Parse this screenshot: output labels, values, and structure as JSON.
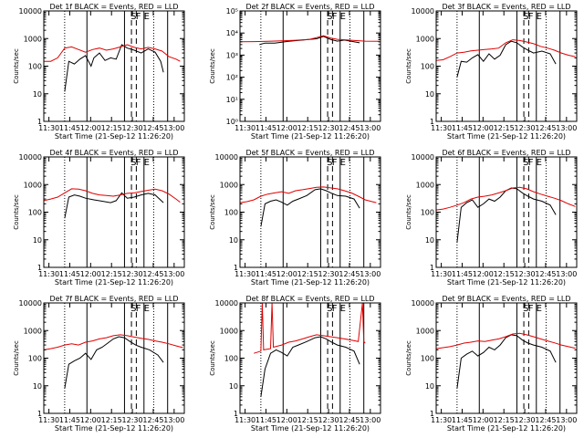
{
  "x_tick_labels": [
    "11:30",
    "11:45",
    "12:00",
    "12:15",
    "12:30",
    "12:45",
    "13:00"
  ],
  "xlabel": "Start Time (21-Sep-12 11:26:20)",
  "ylabel": "Counts/sec",
  "colors": {
    "events": "#000000",
    "lld": "#e00000"
  },
  "chart_data": [
    {
      "type": "line",
      "title": "Det 1f BLACK = Events, RED = LLD",
      "y_scale": "log",
      "ylim": [
        1,
        10000
      ],
      "y_tick_labels": [
        "1",
        "10",
        "100",
        "1000",
        "10000"
      ],
      "xlim_minutes": [
        0,
        101
      ],
      "marker_labels": [
        "S",
        "F",
        "E"
      ],
      "series": [
        {
          "name": "BLACK = Events",
          "x": [
            15,
            18,
            22,
            26,
            30,
            34,
            36,
            40,
            44,
            48,
            52,
            56,
            60,
            65,
            70,
            75,
            80,
            84,
            86
          ],
          "values": [
            12,
            150,
            120,
            180,
            240,
            100,
            200,
            300,
            160,
            200,
            180,
            600,
            450,
            380,
            300,
            420,
            320,
            150,
            60
          ]
        },
        {
          "name": "RED = LLD",
          "x": [
            0,
            5,
            10,
            15,
            20,
            25,
            30,
            35,
            40,
            45,
            50,
            55,
            60,
            65,
            70,
            75,
            80,
            85,
            90,
            95,
            98
          ],
          "values": [
            150,
            150,
            200,
            450,
            500,
            400,
            320,
            400,
            450,
            380,
            420,
            500,
            600,
            480,
            420,
            480,
            420,
            350,
            220,
            180,
            150
          ]
        }
      ]
    },
    {
      "type": "line",
      "title": "Det 2f BLACK = Events, RED = LLD",
      "y_scale": "log",
      "ylim": [
        1,
        100000
      ],
      "y_tick_labels": [
        "10⁰",
        "10¹",
        "10²",
        "10³",
        "10⁴",
        "10⁵"
      ],
      "xlim_minutes": [
        0,
        101
      ],
      "marker_labels": [
        "S",
        "F",
        "E"
      ],
      "series": [
        {
          "name": "BLACK = Events",
          "x": [
            14,
            18,
            25,
            35,
            45,
            55,
            60,
            65,
            70,
            75,
            80,
            86
          ],
          "values": [
            3000,
            3500,
            3500,
            4200,
            4800,
            5500,
            7000,
            5200,
            4300,
            4800,
            4200,
            3600
          ]
        },
        {
          "name": "RED = LLD",
          "x": [
            0,
            10,
            20,
            30,
            40,
            50,
            55,
            60,
            65,
            70,
            80,
            90,
            100
          ],
          "values": [
            4000,
            4100,
            4200,
            4400,
            4700,
            5200,
            6200,
            7500,
            6000,
            5200,
            4700,
            4300,
            4200
          ]
        }
      ]
    },
    {
      "type": "line",
      "title": "Det 3f BLACK = Events, RED = LLD",
      "y_scale": "log",
      "ylim": [
        1,
        10000
      ],
      "y_tick_labels": [
        "1",
        "10",
        "100",
        "1000",
        "10000"
      ],
      "xlim_minutes": [
        0,
        101
      ],
      "marker_labels": [
        "S",
        "F",
        "E"
      ],
      "series": [
        {
          "name": "BLACK = Events",
          "x": [
            15,
            18,
            22,
            26,
            30,
            34,
            38,
            42,
            46,
            50,
            54,
            58,
            62,
            66,
            70,
            76,
            82,
            86
          ],
          "values": [
            40,
            150,
            140,
            200,
            260,
            150,
            280,
            180,
            250,
            600,
            800,
            700,
            500,
            380,
            300,
            350,
            280,
            120
          ]
        },
        {
          "name": "RED = LLD",
          "x": [
            0,
            5,
            10,
            15,
            20,
            25,
            30,
            35,
            40,
            45,
            50,
            55,
            60,
            65,
            70,
            75,
            80,
            85,
            90,
            95,
            100
          ],
          "values": [
            160,
            170,
            220,
            300,
            320,
            360,
            380,
            400,
            420,
            450,
            700,
            900,
            850,
            750,
            650,
            520,
            450,
            380,
            300,
            250,
            220
          ]
        }
      ]
    },
    {
      "type": "line",
      "title": "Det 4f BLACK = Events, RED = LLD",
      "y_scale": "log",
      "ylim": [
        1,
        10000
      ],
      "y_tick_labels": [
        "1",
        "10",
        "100",
        "1000",
        "10000"
      ],
      "xlim_minutes": [
        0,
        101
      ],
      "marker_labels": [
        "S",
        "F",
        "E"
      ],
      "series": [
        {
          "name": "BLACK = Events",
          "x": [
            15,
            18,
            22,
            26,
            30,
            36,
            42,
            48,
            52,
            56,
            60,
            65,
            70,
            75,
            80,
            86
          ],
          "values": [
            60,
            350,
            420,
            380,
            320,
            280,
            250,
            220,
            260,
            500,
            320,
            350,
            420,
            480,
            420,
            220
          ]
        },
        {
          "name": "RED = LLD",
          "x": [
            0,
            5,
            10,
            15,
            20,
            25,
            30,
            35,
            40,
            45,
            50,
            55,
            60,
            65,
            70,
            75,
            80,
            85,
            90,
            95,
            98
          ],
          "values": [
            260,
            300,
            350,
            500,
            700,
            680,
            600,
            480,
            420,
            400,
            380,
            420,
            480,
            500,
            560,
            620,
            680,
            600,
            450,
            300,
            230
          ]
        }
      ]
    },
    {
      "type": "line",
      "title": "Det 5f BLACK = Events, RED = LLD",
      "y_scale": "log",
      "ylim": [
        1,
        10000
      ],
      "y_tick_labels": [
        "1",
        "10",
        "100",
        "1000",
        "10000"
      ],
      "xlim_minutes": [
        0,
        101
      ],
      "marker_labels": [
        "S",
        "F",
        "E"
      ],
      "series": [
        {
          "name": "BLACK = Events",
          "x": [
            15,
            18,
            22,
            26,
            30,
            34,
            38,
            42,
            48,
            54,
            58,
            62,
            66,
            70,
            76,
            82,
            86
          ],
          "values": [
            30,
            200,
            250,
            280,
            230,
            180,
            250,
            300,
            400,
            650,
            700,
            600,
            480,
            400,
            380,
            300,
            140
          ]
        },
        {
          "name": "RED = LLD",
          "x": [
            0,
            5,
            10,
            15,
            20,
            25,
            30,
            35,
            40,
            45,
            50,
            55,
            60,
            65,
            70,
            75,
            80,
            85,
            90,
            95,
            98
          ],
          "values": [
            220,
            240,
            280,
            380,
            450,
            500,
            550,
            480,
            600,
            650,
            720,
            800,
            820,
            760,
            700,
            600,
            500,
            380,
            280,
            240,
            220
          ]
        }
      ]
    },
    {
      "type": "line",
      "title": "Det 6f BLACK = Events, RED = LLD",
      "y_scale": "log",
      "ylim": [
        1,
        10000
      ],
      "y_tick_labels": [
        "1",
        "10",
        "100",
        "1000",
        "10000"
      ],
      "xlim_minutes": [
        0,
        101
      ],
      "marker_labels": [
        "S",
        "F",
        "E"
      ],
      "series": [
        {
          "name": "BLACK = Events",
          "x": [
            15,
            18,
            22,
            26,
            30,
            34,
            38,
            42,
            46,
            50,
            54,
            58,
            62,
            66,
            70,
            76,
            82,
            86
          ],
          "values": [
            8,
            150,
            220,
            280,
            150,
            200,
            300,
            250,
            350,
            600,
            750,
            700,
            500,
            380,
            300,
            250,
            180,
            80
          ]
        },
        {
          "name": "RED = LLD",
          "x": [
            0,
            5,
            10,
            15,
            20,
            25,
            30,
            35,
            40,
            45,
            50,
            55,
            60,
            65,
            70,
            75,
            80,
            85,
            90,
            95,
            100
          ],
          "values": [
            120,
            130,
            150,
            180,
            220,
            300,
            350,
            380,
            420,
            500,
            600,
            750,
            800,
            700,
            550,
            450,
            380,
            320,
            260,
            200,
            160
          ]
        }
      ]
    },
    {
      "type": "line",
      "title": "Det 7f BLACK = Events, RED = LLD",
      "y_scale": "log",
      "ylim": [
        1,
        10000
      ],
      "y_tick_labels": [
        "1",
        "10",
        "100",
        "1000",
        "10000"
      ],
      "xlim_minutes": [
        0,
        101
      ],
      "marker_labels": [
        "S",
        "F",
        "E"
      ],
      "series": [
        {
          "name": "BLACK = Events",
          "x": [
            15,
            18,
            22,
            26,
            30,
            34,
            38,
            42,
            46,
            50,
            54,
            58,
            62,
            66,
            70,
            76,
            82,
            86
          ],
          "values": [
            8,
            60,
            80,
            100,
            150,
            90,
            200,
            250,
            350,
            500,
            600,
            550,
            400,
            300,
            250,
            200,
            130,
            70
          ]
        },
        {
          "name": "RED = LLD",
          "x": [
            0,
            5,
            10,
            15,
            20,
            25,
            30,
            35,
            40,
            45,
            50,
            55,
            60,
            65,
            70,
            75,
            80,
            85,
            90,
            95,
            100
          ],
          "values": [
            200,
            220,
            250,
            300,
            330,
            300,
            380,
            420,
            500,
            550,
            650,
            700,
            650,
            580,
            520,
            480,
            420,
            380,
            330,
            280,
            240
          ]
        }
      ]
    },
    {
      "type": "line",
      "title": "Det 8f BLACK = Events, RED = LLD",
      "y_scale": "log",
      "ylim": [
        1,
        10000
      ],
      "y_tick_labels": [
        "1",
        "10",
        "100",
        "1000",
        "10000"
      ],
      "xlim_minutes": [
        0,
        101
      ],
      "marker_labels": [
        "S",
        "F",
        "E"
      ],
      "series": [
        {
          "name": "BLACK = Events",
          "x": [
            15,
            18,
            22,
            26,
            30,
            34,
            38,
            42,
            48,
            54,
            58,
            62,
            66,
            70,
            76,
            82,
            86
          ],
          "values": [
            4,
            40,
            150,
            200,
            160,
            120,
            250,
            300,
            400,
            550,
            600,
            500,
            380,
            300,
            250,
            180,
            60
          ]
        },
        {
          "name": "RED = LLD",
          "x": [
            10,
            15,
            16,
            17,
            22,
            23,
            24,
            30,
            35,
            40,
            45,
            50,
            55,
            60,
            65,
            70,
            75,
            80,
            85,
            88,
            89,
            90
          ],
          "values": [
            150,
            180,
            10000,
            200,
            220,
            10000,
            250,
            300,
            380,
            420,
            500,
            600,
            700,
            650,
            600,
            550,
            500,
            450,
            400,
            10000,
            400,
            350
          ]
        }
      ]
    },
    {
      "type": "line",
      "title": "Det 9f BLACK = Events, RED = LLD",
      "y_scale": "log",
      "ylim": [
        1,
        10000
      ],
      "y_tick_labels": [
        "1",
        "10",
        "100",
        "1000",
        "10000"
      ],
      "xlim_minutes": [
        0,
        101
      ],
      "marker_labels": [
        "S",
        "F",
        "E"
      ],
      "series": [
        {
          "name": "BLACK = Events",
          "x": [
            15,
            18,
            22,
            26,
            30,
            34,
            38,
            42,
            46,
            50,
            54,
            58,
            62,
            66,
            70,
            76,
            82,
            86
          ],
          "values": [
            8,
            100,
            140,
            180,
            120,
            160,
            250,
            200,
            300,
            550,
            700,
            650,
            450,
            350,
            300,
            250,
            180,
            70
          ]
        },
        {
          "name": "RED = LLD",
          "x": [
            0,
            5,
            10,
            15,
            20,
            25,
            30,
            35,
            40,
            45,
            50,
            55,
            60,
            65,
            70,
            75,
            80,
            85,
            90,
            95,
            100
          ],
          "values": [
            220,
            240,
            260,
            300,
            350,
            380,
            420,
            400,
            450,
            500,
            600,
            750,
            800,
            700,
            600,
            500,
            420,
            360,
            300,
            260,
            230
          ]
        }
      ]
    }
  ]
}
